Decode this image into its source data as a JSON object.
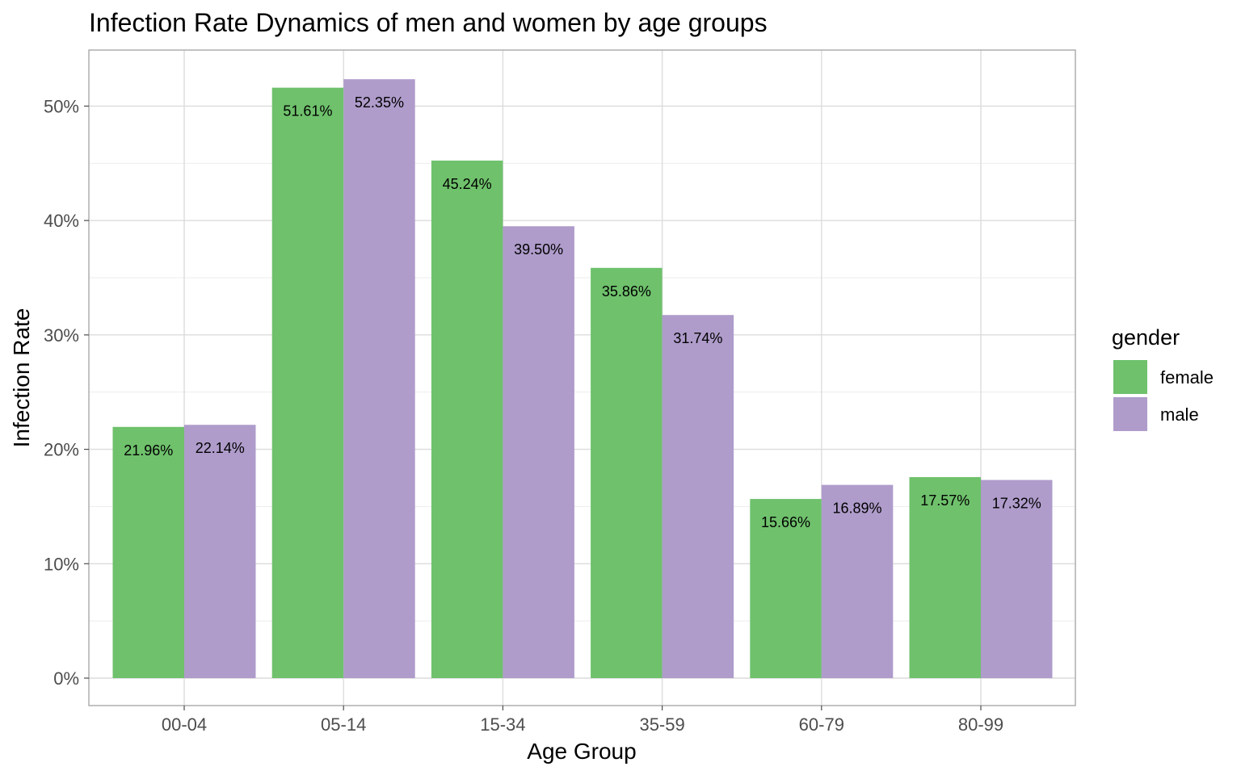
{
  "chart_data": {
    "type": "bar",
    "title": "Infection Rate Dynamics of men and women by age groups",
    "xlabel": "Age Group",
    "ylabel": "Infection Rate",
    "categories": [
      "00-04",
      "05-14",
      "15-34",
      "35-59",
      "60-79",
      "80-99"
    ],
    "series": [
      {
        "name": "female",
        "color": "#6fc16c",
        "values": [
          21.96,
          51.61,
          45.24,
          35.86,
          15.66,
          17.57
        ],
        "labels": [
          "21.96%",
          "51.61%",
          "45.24%",
          "35.86%",
          "15.66%",
          "17.57%"
        ]
      },
      {
        "name": "male",
        "color": "#af9ccb",
        "values": [
          22.14,
          52.35,
          39.5,
          31.74,
          16.89,
          17.32
        ],
        "labels": [
          "22.14%",
          "52.35%",
          "39.50%",
          "31.74%",
          "16.89%",
          "17.32%"
        ]
      }
    ],
    "ylim": [
      -2.4,
      54.9
    ],
    "yticks": [
      0,
      10,
      20,
      30,
      40,
      50
    ],
    "ytick_labels": [
      "0%",
      "10%",
      "20%",
      "30%",
      "40%",
      "50%"
    ],
    "grid": true,
    "legend": {
      "title": "gender",
      "placement": "right"
    }
  }
}
